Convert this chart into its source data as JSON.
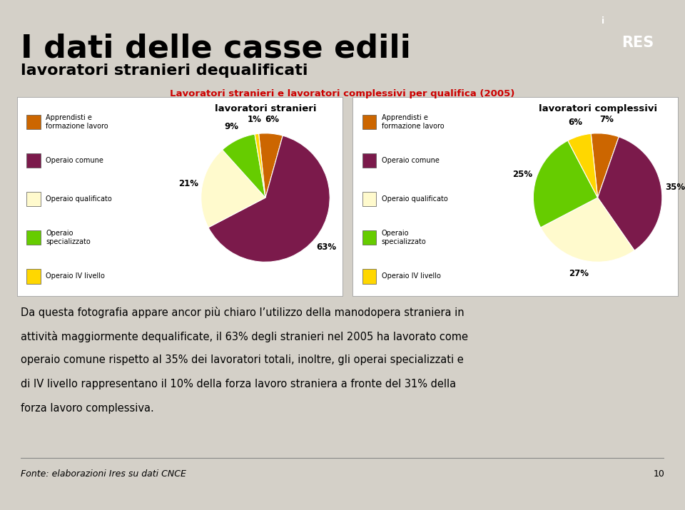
{
  "title_main": "I dati delle casse edili",
  "title_sub": "lavoratori stranieri dequalificati",
  "chart_title": "Lavoratori stranieri e lavoratori complessivi per qualifica (2005)",
  "pie1_title": "lavoratori stranieri",
  "pie2_title": "lavoratori complessivi",
  "categories": [
    "Apprendisti e\nformazione lavoro",
    "Operaio comune",
    "Operaio qualificato",
    "Operaio\nspecializzato",
    "Operaio IV livello"
  ],
  "pie1_values": [
    6,
    63,
    21,
    9,
    1
  ],
  "pie2_values": [
    7,
    35,
    27,
    25,
    6
  ],
  "pie1_colors": [
    "#CC6600",
    "#7B1A4B",
    "#FFFACD",
    "#66CC00",
    "#FFD700"
  ],
  "pie2_colors": [
    "#CC6600",
    "#7B1A4B",
    "#FFFACD",
    "#66CC00",
    "#FFD700"
  ],
  "pie1_labels": [
    "6%",
    "63%",
    "21%",
    "9%",
    "1%"
  ],
  "pie2_labels": [
    "7%",
    "35%",
    "27%",
    "25%",
    "6%"
  ],
  "legend_colors": [
    "#CC6600",
    "#7B1A4B",
    "#FFFACD",
    "#66CC00",
    "#FFD700"
  ],
  "footer_text": "Fonte: elaborazioni Ires su dati CNCE",
  "footer_page": "10",
  "bg_color": "#D4D0C8",
  "panel_color": "#FFFFFF",
  "header_red": "#CC0000",
  "red_bar_color": "#CC0000",
  "pie1_startangle": 96,
  "pie2_startangle": 96
}
